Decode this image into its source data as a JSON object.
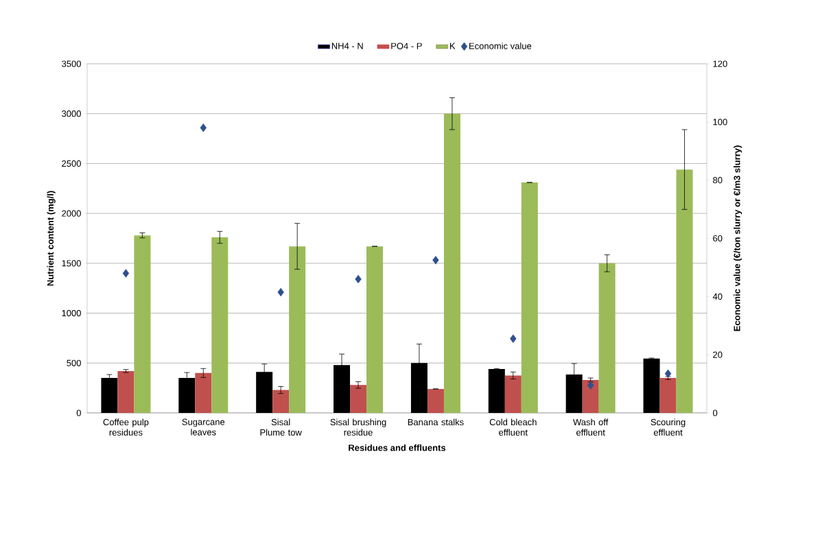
{
  "chart_data": {
    "type": "bar",
    "xlabel": "Residues and effluents",
    "ylabel": "Nutrient content (mg/l)",
    "y2label": "Economic value  (€/ton slurry or €/m3 slurry)",
    "categories": [
      "Coffee pulp residues",
      "Sugarcane leaves",
      "Sisal Plume tow",
      "Sisal brushing residue",
      "Banana stalks",
      "Cold bleach effluent",
      "Wash off effluent",
      "Scouring effluent"
    ],
    "series": [
      {
        "name": "NH4 - N",
        "color": "#000000",
        "values": [
          350,
          350,
          410,
          480,
          500,
          440,
          385,
          545
        ],
        "errors": [
          35,
          55,
          80,
          110,
          190,
          5,
          110,
          5
        ]
      },
      {
        "name": "PO4 - P",
        "color": "#c0504d",
        "values": [
          420,
          400,
          230,
          280,
          240,
          375,
          330,
          350
        ],
        "errors": [
          15,
          45,
          35,
          33,
          0,
          35,
          20,
          15
        ]
      },
      {
        "name": "K",
        "color": "#9bbb59",
        "values": [
          1780,
          1760,
          1670,
          1670,
          3000,
          2310,
          1500,
          2440
        ],
        "errors": [
          25,
          60,
          230,
          0,
          160,
          0,
          85,
          400
        ]
      },
      {
        "name": "Economic value",
        "type": "scatter",
        "axis": "y2",
        "marker": "diamond",
        "color": "#2f4f8f",
        "values": [
          48,
          98,
          41.5,
          46,
          52.5,
          25.5,
          9.5,
          13.5
        ]
      }
    ],
    "ylim": [
      0,
      3500
    ],
    "yticks": [
      0,
      500,
      1000,
      1500,
      2000,
      2500,
      3000,
      3500
    ],
    "y2lim": [
      0,
      120
    ],
    "y2ticks": [
      0,
      20,
      40,
      60,
      80,
      100,
      120
    ],
    "grid": "y",
    "legend": "top"
  }
}
